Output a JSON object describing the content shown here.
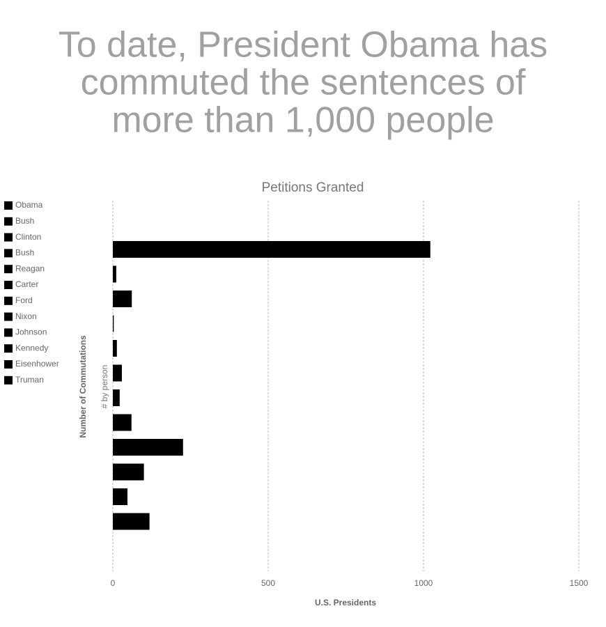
{
  "chart_data": {
    "type": "bar",
    "orientation": "horizontal",
    "title": [
      "To date, President Obama has",
      "commuted the sentences of",
      "more than 1,000 people"
    ],
    "subtitle": "Petitions Granted",
    "y_label": "Number of Commutations",
    "y_sublabel": "# by person",
    "x_label": "U.S. Presidents",
    "categories": [
      "Obama",
      "Bush",
      "Clinton",
      "Bush",
      "Reagan",
      "Carter",
      "Ford",
      "Nixon",
      "Johnson",
      "Kennedy",
      "Eisenhower",
      "Truman"
    ],
    "values": [
      1022,
      11,
      61,
      3,
      13,
      29,
      22,
      60,
      226,
      100,
      47,
      118
    ],
    "color": "#000000",
    "xlim": [
      0,
      1500
    ],
    "xticks": [
      0,
      500,
      1000,
      1500
    ],
    "grid": true
  }
}
